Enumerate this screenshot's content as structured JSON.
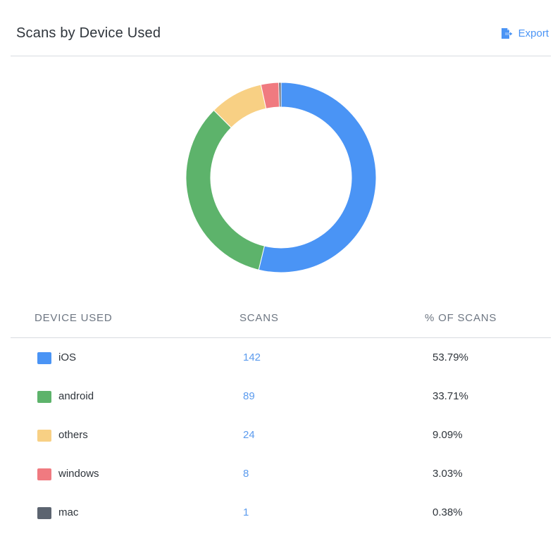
{
  "header": {
    "title": "Scans by Device Used",
    "export_label": "Export"
  },
  "table": {
    "columns": [
      "DEVICE USED",
      "SCANS",
      "% OF SCANS"
    ],
    "rows": [
      {
        "device": "iOS",
        "scans": "142",
        "percent": "53.79%",
        "color": "#4a94f5"
      },
      {
        "device": "android",
        "scans": "89",
        "percent": "33.71%",
        "color": "#5db36b"
      },
      {
        "device": "others",
        "scans": "24",
        "percent": "9.09%",
        "color": "#f8d084"
      },
      {
        "device": "windows",
        "scans": "8",
        "percent": "3.03%",
        "color": "#f07a80"
      },
      {
        "device": "mac",
        "scans": "1",
        "percent": "0.38%",
        "color": "#5c6470"
      }
    ]
  },
  "chart_data": {
    "type": "pie",
    "variant": "donut",
    "categories": [
      "iOS",
      "android",
      "others",
      "windows",
      "mac"
    ],
    "values": [
      142,
      89,
      24,
      8,
      1
    ],
    "colors": [
      "#4a94f5",
      "#5db36b",
      "#f8d084",
      "#f07a80",
      "#5c6470"
    ],
    "legend": "table-below"
  }
}
